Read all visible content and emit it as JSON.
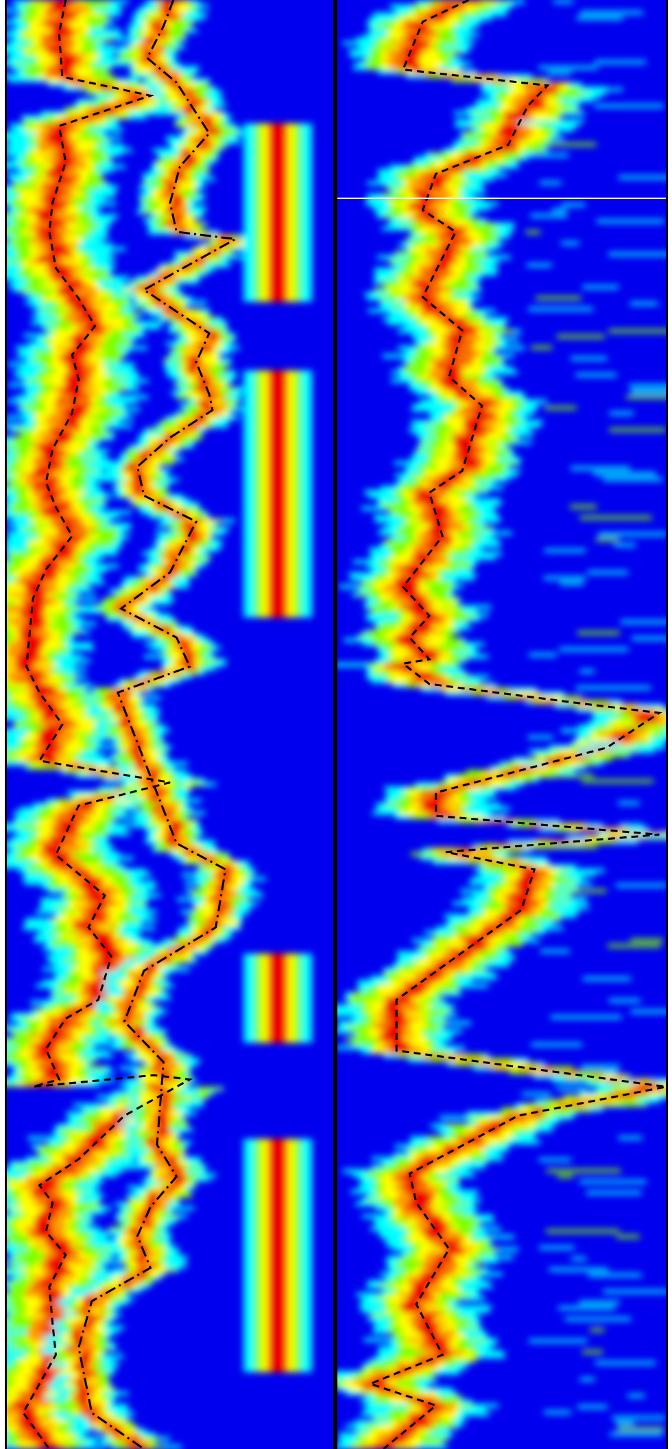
{
  "chart_data": [
    {
      "type": "heatmap",
      "panel": "left",
      "title": "",
      "xlabel": "",
      "ylabel": "",
      "colormap": [
        "#0000ee",
        "#00ffff",
        "#7fff00",
        "#ffff00",
        "#ff9900",
        "#ee0000"
      ],
      "grid": false,
      "legend": "none",
      "ridges": [
        {
          "style": "dashed",
          "x_frac": [
            0.18,
            0.16,
            0.17,
            0.44,
            0.16,
            0.18,
            0.14,
            0.13,
            0.15,
            0.22,
            0.27,
            0.2,
            0.22,
            0.2,
            0.14,
            0.12,
            0.15,
            0.2,
            0.12,
            0.08,
            0.06,
            0.1,
            0.17,
            0.1,
            0.5,
            0.22,
            0.15,
            0.3,
            0.25,
            0.32,
            0.28,
            0.18,
            0.12,
            0.16,
            0.08,
            0.45,
            0.56,
            0.36,
            0.22,
            0.1,
            0.14,
            0.12,
            0.18,
            0.13,
            0.14,
            0.15,
            0.1,
            0.05,
            0.13
          ],
          "y_frac": [
            0.0,
            0.023,
            0.053,
            0.066,
            0.087,
            0.112,
            0.14,
            0.16,
            0.185,
            0.206,
            0.225,
            0.245,
            0.262,
            0.285,
            0.31,
            0.333,
            0.35,
            0.37,
            0.393,
            0.413,
            0.46,
            0.478,
            0.5,
            0.525,
            0.54,
            0.556,
            0.59,
            0.618,
            0.64,
            0.66,
            0.69,
            0.703,
            0.724,
            0.745,
            0.75,
            0.742,
            0.745,
            0.77,
            0.8,
            0.818,
            0.83,
            0.85,
            0.866,
            0.888,
            0.913,
            0.935,
            0.955,
            0.975,
            1.0
          ]
        },
        {
          "style": "dash-dot",
          "x_frac": [
            0.51,
            0.48,
            0.43,
            0.52,
            0.62,
            0.53,
            0.5,
            0.52,
            0.7,
            0.42,
            0.62,
            0.58,
            0.62,
            0.63,
            0.5,
            0.4,
            0.42,
            0.58,
            0.5,
            0.35,
            0.52,
            0.56,
            0.34,
            0.52,
            0.67,
            0.64,
            0.42,
            0.36,
            0.48,
            0.46,
            0.52,
            0.44,
            0.4,
            0.44,
            0.26,
            0.22,
            0.26,
            0.42
          ],
          "y_frac": [
            0.0,
            0.018,
            0.04,
            0.057,
            0.092,
            0.115,
            0.14,
            0.16,
            0.165,
            0.2,
            0.23,
            0.25,
            0.272,
            0.283,
            0.302,
            0.322,
            0.342,
            0.36,
            0.395,
            0.42,
            0.44,
            0.46,
            0.478,
            0.582,
            0.6,
            0.64,
            0.67,
            0.705,
            0.733,
            0.79,
            0.812,
            0.833,
            0.853,
            0.875,
            0.898,
            0.93,
            0.975,
            1.0
          ]
        }
      ]
    },
    {
      "type": "heatmap",
      "panel": "right",
      "title": "",
      "xlabel": "",
      "ylabel": "",
      "colormap": [
        "#0000ee",
        "#00ffff",
        "#7fff00",
        "#ffff00",
        "#ff9900",
        "#ee0000"
      ],
      "grid": false,
      "legend": "none",
      "ridges": [
        {
          "style": "dashed",
          "x_frac": [
            0.4,
            0.26,
            0.2,
            0.64,
            0.58,
            0.52,
            0.3,
            0.26,
            0.36,
            0.26,
            0.38,
            0.34,
            0.44,
            0.38,
            0.28,
            0.32,
            0.2,
            0.28,
            0.22,
            0.28,
            0.2,
            0.28,
            0.76,
            0.98,
            0.82,
            0.3,
            0.3,
            0.98,
            0.33,
            0.6,
            0.56,
            0.18,
            0.18,
            1.0,
            0.55,
            0.22,
            0.24,
            0.34,
            0.24,
            0.32,
            0.1,
            0.3,
            0.14
          ],
          "y_frac": [
            0.0,
            0.015,
            0.048,
            0.059,
            0.073,
            0.1,
            0.12,
            0.145,
            0.16,
            0.205,
            0.228,
            0.26,
            0.28,
            0.325,
            0.34,
            0.37,
            0.405,
            0.425,
            0.44,
            0.455,
            0.458,
            0.472,
            0.486,
            0.492,
            0.516,
            0.547,
            0.563,
            0.576,
            0.588,
            0.6,
            0.628,
            0.69,
            0.725,
            0.75,
            0.77,
            0.81,
            0.83,
            0.862,
            0.9,
            0.935,
            0.955,
            0.97,
            1.0
          ]
        }
      ]
    }
  ]
}
